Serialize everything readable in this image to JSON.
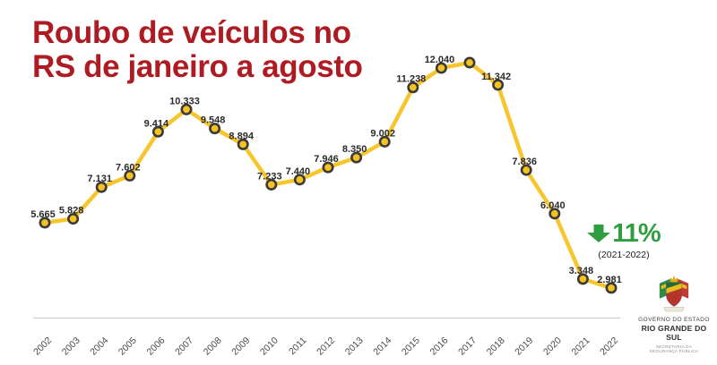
{
  "title": {
    "line1": "Roubo de veículos no",
    "line2": "RS de janeiro a agosto"
  },
  "badge": {
    "percent": "11%",
    "range": "(2021-2022)",
    "direction": "decrease",
    "color": "#2F9E41"
  },
  "logo": {
    "line1": "GOVERNO DO ESTADO",
    "line2": "RIO GRANDE DO SUL",
    "line3": "SECRETARIA DA",
    "line4": "SEGURANÇA PÚBLICA"
  },
  "colors": {
    "title_red": "#AE1B22",
    "line_yellow": "#F7C52E",
    "marker_fill": "#F5C21E",
    "marker_stroke": "#3A3A3A",
    "badge_green": "#2F9E41",
    "axis_gray": "#C9C9C9",
    "tick_text": "#4A4A4A",
    "label_text": "#2A2A2A"
  },
  "chart_data": {
    "type": "line",
    "title": "Roubo de veículos no RS de janeiro a agosto",
    "categories": [
      "2002",
      "2003",
      "2004",
      "2005",
      "2006",
      "2007",
      "2008",
      "2009",
      "2010",
      "2011",
      "2012",
      "2013",
      "2014",
      "2015",
      "2016",
      "2017",
      "2018",
      "2019",
      "2020",
      "2021",
      "2022"
    ],
    "values": [
      5665,
      5828,
      7131,
      7602,
      9414,
      10333,
      9548,
      8894,
      7233,
      7440,
      7946,
      8350,
      9002,
      11238,
      12040,
      12260,
      11342,
      7836,
      6040,
      3348,
      2981
    ],
    "point_labels": [
      "5.665",
      "5.828",
      "7.131",
      "7.602",
      "9.414",
      "10.333",
      "9.548",
      "8.894",
      "7.233",
      "7.440",
      "7.946",
      "8.350",
      "9.002",
      "11.238",
      "12.040",
      "",
      "11.342",
      "7.836",
      "6.040",
      "3.348",
      "2.981"
    ],
    "notes": "2017 point has no visible data label; its value is estimated from plot position",
    "annotation": {
      "text": "11%",
      "subtext": "(2021-2022)"
    },
    "xlabel": "",
    "ylabel": "",
    "ylim": [
      2500,
      12600
    ],
    "grid": false,
    "legend": false,
    "line_color": "#F7C52E",
    "marker_fill": "#F5C21E",
    "marker_stroke": "#3A3A3A"
  }
}
